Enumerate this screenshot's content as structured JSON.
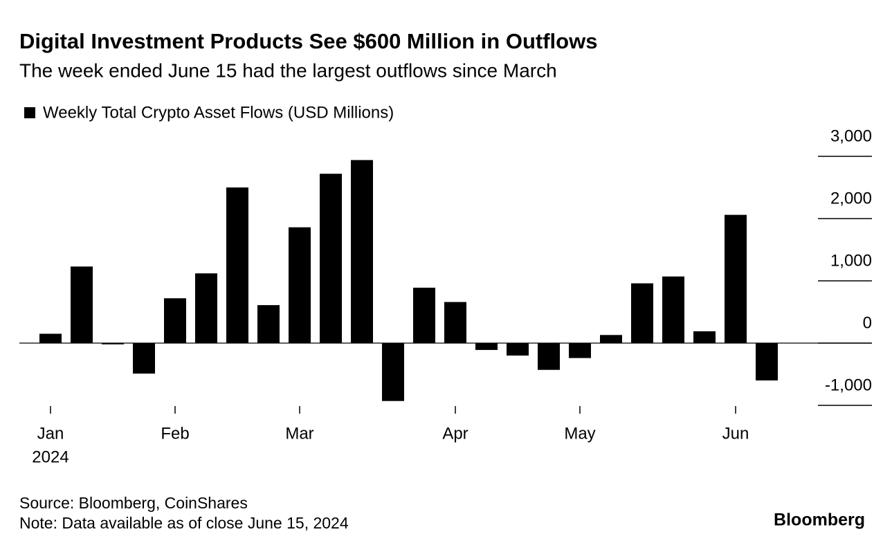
{
  "chart_data": {
    "type": "bar",
    "title": "Digital Investment Products See $600 Million in Outflows",
    "subtitle": "The week ended June 15 had the largest outflows since March",
    "legend_label": "Weekly Total Crypto Asset Flows (USD Millions)",
    "categories": [
      "Jan",
      null,
      null,
      null,
      "Feb",
      null,
      null,
      null,
      "Mar",
      null,
      null,
      null,
      null,
      "Apr",
      null,
      null,
      null,
      "May",
      null,
      null,
      null,
      null,
      "Jun",
      null
    ],
    "x_year_label": "2024",
    "values": [
      150,
      1230,
      -20,
      -490,
      720,
      1120,
      2500,
      610,
      1860,
      2720,
      2940,
      -930,
      890,
      660,
      -110,
      -200,
      -430,
      -240,
      130,
      960,
      1070,
      190,
      2060,
      -600
    ],
    "color": "#000000",
    "ylim": [
      -1000,
      3000
    ],
    "yticks": [
      {
        "value": -1000,
        "label": "-1,000"
      },
      0,
      {
        "value": 1000,
        "label": "1,000"
      },
      {
        "value": 2000,
        "label": "2,000"
      },
      {
        "value": 3000,
        "label": "3,000"
      }
    ],
    "source": "Source: Bloomberg, CoinShares",
    "note": "Note: Data available as of close June 15, 2024",
    "brand": "Bloomberg"
  }
}
